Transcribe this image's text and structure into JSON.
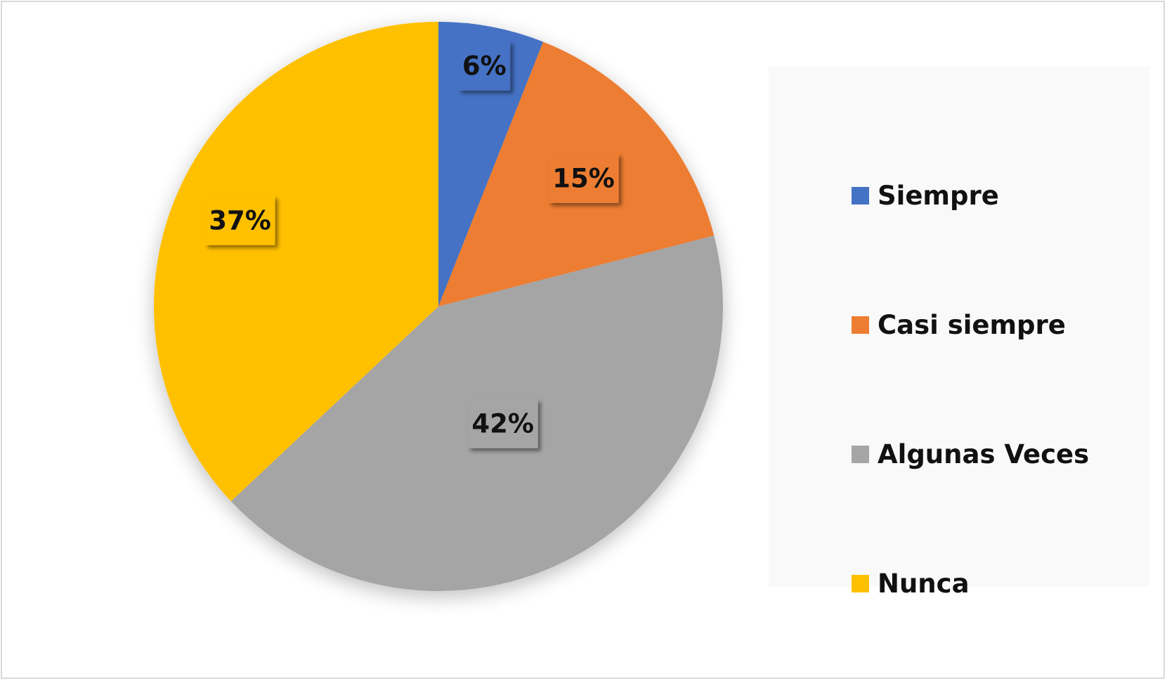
{
  "chart_data": {
    "type": "pie",
    "title": "",
    "categories": [
      "Siempre",
      "Casi siempre",
      "Algunas Veces",
      "Nunca"
    ],
    "values": [
      6,
      15,
      42,
      37
    ],
    "data_labels": [
      "6%",
      "15%",
      "42%",
      "37%"
    ],
    "colors": [
      "#4472c4",
      "#ed7d31",
      "#a5a5a5",
      "#ffc000"
    ],
    "legend_position": "right",
    "start_angle": "12 o'clock",
    "direction": "clockwise"
  },
  "legend": {
    "items": [
      {
        "label": "Siempre",
        "color": "#4472c4"
      },
      {
        "label": "Casi siempre",
        "color": "#ed7d31"
      },
      {
        "label": "Algunas Veces",
        "color": "#a5a5a5"
      },
      {
        "label": "Nunca",
        "color": "#ffc000"
      }
    ]
  }
}
